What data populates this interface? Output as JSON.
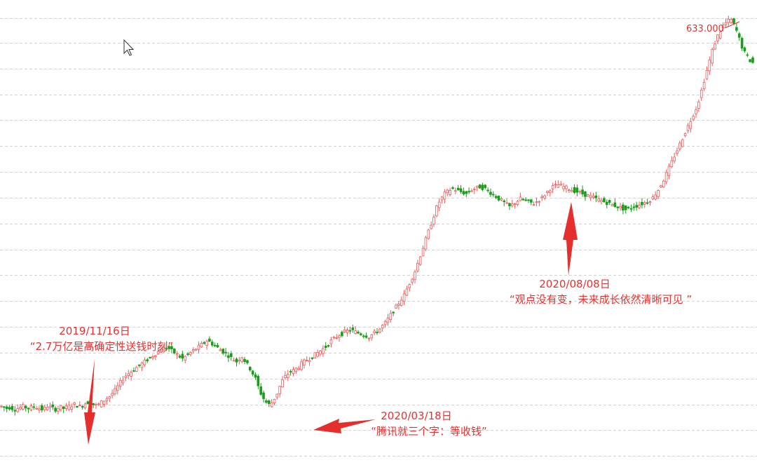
{
  "chart_data": {
    "type": "candlestick",
    "grid": true,
    "gridlines_y": [
      633,
      608,
      582,
      556,
      530,
      504,
      478,
      452,
      426,
      400,
      374,
      348,
      322,
      296,
      270,
      244,
      218,
      192
    ],
    "ylim": [
      183,
      651
    ],
    "peak_label": "633.000",
    "up_color": "#ee5b5b",
    "down_color": "#1a9d1a",
    "annotations": [
      {
        "date": "2019/11/16日",
        "quote": "“2.7万亿是高确定性送钱时刻”"
      },
      {
        "date": "2020/03/18日",
        "quote": "“腾讯就三个字：等收钱”"
      },
      {
        "date": "2020/08/08日",
        "quote": "“观点没有变，未来成长依然清晰可见 ”"
      }
    ],
    "close": [
      242,
      241,
      240,
      241,
      240,
      239,
      240,
      241,
      242,
      241,
      240,
      241,
      242,
      241,
      240,
      239,
      240,
      242,
      241,
      240,
      239,
      240,
      241,
      240,
      241,
      242,
      243,
      244,
      243,
      242,
      243,
      245,
      246,
      245,
      244,
      243,
      244,
      246,
      248,
      250,
      252,
      255,
      258,
      262,
      266,
      270,
      273,
      275,
      277,
      279,
      281,
      283,
      285,
      287,
      289,
      291,
      293,
      295,
      297,
      299,
      300,
      301,
      300,
      298,
      296,
      294,
      292,
      290,
      292,
      294,
      296,
      298,
      300,
      302,
      304,
      306,
      308,
      307,
      305,
      303,
      301,
      299,
      297,
      295,
      293,
      291,
      289,
      287,
      290,
      292,
      288,
      284,
      280,
      275,
      270,
      262,
      255,
      250,
      246,
      244,
      246,
      250,
      255,
      262,
      268,
      272,
      275,
      277,
      278,
      280,
      282,
      285,
      287,
      289,
      290,
      292,
      294,
      296,
      298,
      300,
      302,
      305,
      308,
      310,
      312,
      314,
      315,
      317,
      318,
      319,
      318,
      317,
      316,
      315,
      314,
      313,
      312,
      314,
      316,
      318,
      320,
      323,
      326,
      330,
      334,
      338,
      342,
      346,
      350,
      354,
      360,
      366,
      372,
      378,
      386,
      394,
      402,
      410,
      418,
      426,
      434,
      442,
      448,
      452,
      456,
      458,
      460,
      461,
      460,
      459,
      458,
      457,
      456,
      458,
      460,
      461,
      462,
      463,
      462,
      461,
      459,
      457,
      455,
      453,
      451,
      449,
      447,
      445,
      443,
      445,
      447,
      449,
      451,
      450,
      449,
      448,
      447,
      446,
      448,
      450,
      452,
      455,
      458,
      461,
      463,
      464,
      465,
      464,
      463,
      462,
      461,
      460,
      459,
      458,
      457,
      456,
      455,
      454,
      453,
      452,
      451,
      450,
      449,
      448,
      447,
      446,
      445,
      444,
      443,
      442,
      441,
      440,
      441,
      442,
      443,
      444,
      445,
      446,
      447,
      448,
      450,
      452,
      456,
      460,
      465,
      470,
      476,
      482,
      488,
      494,
      500,
      506,
      512,
      518,
      524,
      530,
      536,
      542,
      550,
      560,
      570,
      580,
      590,
      600,
      608,
      615,
      620,
      625,
      628,
      630,
      631,
      626,
      620,
      612,
      604,
      598,
      594,
      590,
      588
    ]
  }
}
